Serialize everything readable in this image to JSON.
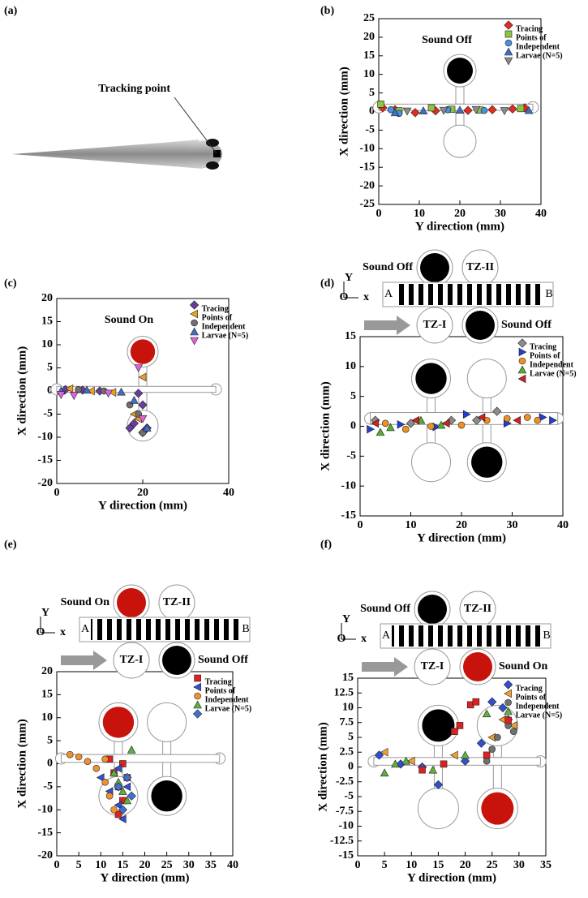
{
  "chart_data": [
    {
      "type": "image",
      "panel_label": "(a)",
      "annotation": "Tracking point"
    },
    {
      "type": "scatter",
      "panel_label": "(b)",
      "annotation": "Sound Off",
      "xlabel": "Y direction  (mm)",
      "ylabel": "X direction (mm)",
      "xlim": [
        0,
        40
      ],
      "xticks": [
        0,
        10,
        20,
        30,
        40
      ],
      "ylim": [
        -25,
        25
      ],
      "yticks": [
        -25,
        -20,
        -15,
        -10,
        -5,
        0,
        5,
        10,
        15,
        20,
        25
      ],
      "chamber_colors": [
        "#000000",
        "#ffffff"
      ],
      "series": [
        {
          "name": "Tracing",
          "color": "#e32b1e",
          "marker": "diamond",
          "x": [
            1,
            4,
            9,
            14,
            22,
            28,
            33,
            36
          ],
          "values": [
            1,
            0.5,
            -0.3,
            0.2,
            0.3,
            0.5,
            0.7,
            1
          ]
        },
        {
          "name": "Points of",
          "color": "#8cc63f",
          "marker": "square",
          "x": [
            0.5,
            5,
            13,
            18,
            25,
            35
          ],
          "values": [
            2,
            0.2,
            1,
            0.6,
            0.4,
            0.8
          ]
        },
        {
          "name": "Independent",
          "color": "#4a90d9",
          "marker": "circle",
          "x": [
            3,
            5,
            17,
            26
          ],
          "values": [
            0.5,
            -0.5,
            0.5,
            0.3
          ]
        },
        {
          "name": "Larvae (N=5)",
          "color": "#3d6fc9",
          "marker": "triangle-up",
          "x": [
            4,
            11,
            20,
            37
          ],
          "values": [
            -0.3,
            0.2,
            0.4,
            0.3
          ]
        },
        {
          "name": null,
          "color": "#8c8c8c",
          "marker": "triangle-down",
          "x": [
            7,
            16,
            24,
            31
          ],
          "values": [
            0.1,
            0.3,
            0.5,
            0.2
          ]
        }
      ]
    },
    {
      "type": "scatter",
      "panel_label": "(c)",
      "annotation": "Sound On",
      "xlabel": "Y direction  (mm)",
      "ylabel": "X direction (mm)",
      "xlim": [
        0,
        40
      ],
      "xticks": [
        0,
        20,
        40
      ],
      "ylim": [
        -20,
        20
      ],
      "yticks": [
        -20,
        -15,
        -10,
        -5,
        0,
        5,
        10,
        15,
        20
      ],
      "chamber_colors": [
        "#c8120c",
        "#ffffff"
      ],
      "series": [
        {
          "name": "Tracing",
          "color": "#6a3d9a",
          "marker": "diamond",
          "x": [
            2,
            6,
            10,
            19,
            20,
            18,
            21,
            20,
            17
          ],
          "values": [
            0.3,
            0.2,
            0,
            -0.5,
            -3,
            -7,
            -8,
            -9,
            -8
          ]
        },
        {
          "name": "Points of",
          "color": "#f0a020",
          "marker": "triangle-left",
          "x": [
            3,
            8,
            13,
            18,
            20,
            19
          ],
          "values": [
            0.5,
            0,
            -0.3,
            -5,
            3,
            -6
          ]
        },
        {
          "name": "Independent",
          "color": "#707070",
          "marker": "circle",
          "x": [
            5,
            11,
            17,
            19,
            20
          ],
          "values": [
            0.3,
            0,
            -3,
            -5,
            -9
          ]
        },
        {
          "name": "Larvae (N=5)",
          "color": "#3d6fc9",
          "marker": "triangle-up",
          "x": [
            1,
            7,
            15,
            18,
            21
          ],
          "values": [
            0,
            0.2,
            -0.2,
            -2,
            -8
          ]
        },
        {
          "name": null,
          "color": "#e060e0",
          "marker": "triangle-down",
          "x": [
            1,
            4,
            12,
            19,
            20
          ],
          "values": [
            -0.8,
            -1,
            -0.5,
            5,
            -6
          ]
        }
      ]
    },
    {
      "type": "scatter",
      "panel_label": "(d)",
      "xlabel": "Y direction  (mm)",
      "ylabel": "X direction (mm)",
      "xlim": [
        0,
        40
      ],
      "xticks": [
        0,
        10,
        20,
        30,
        40
      ],
      "ylim": [
        -15,
        15
      ],
      "yticks": [
        -15,
        -10,
        -5,
        0,
        5,
        10,
        15
      ],
      "chamber_colors": [
        "#000000",
        "#ffffff",
        "#ffffff",
        "#000000"
      ],
      "schematic": {
        "labels": [
          "Sound Off",
          "TZ-II",
          "A",
          "B",
          "TZ-I",
          "Sound Off",
          "Y",
          "O",
          "x"
        ],
        "top_color": "#000000",
        "bottom_color": "#000000"
      },
      "series": [
        {
          "name": "Tracing",
          "color": "#8c8c8c",
          "marker": "diamond",
          "x": [
            3,
            10,
            18,
            23,
            27
          ],
          "values": [
            1,
            0.5,
            1,
            1,
            2.5
          ]
        },
        {
          "name": "Points of",
          "color": "#2040d0",
          "marker": "triangle-right",
          "x": [
            2,
            8,
            15,
            21,
            29,
            36,
            38
          ],
          "values": [
            -0.5,
            0.3,
            -0.1,
            2,
            0.5,
            1.5,
            1
          ]
        },
        {
          "name": "Independent",
          "color": "#f09020",
          "marker": "circle",
          "x": [
            5,
            9,
            14,
            20,
            25,
            29,
            33,
            35
          ],
          "values": [
            0.5,
            -0.5,
            0,
            0.2,
            1,
            1.3,
            1.5,
            1
          ]
        },
        {
          "name": "Larvae (N=5)",
          "color": "#50b030",
          "marker": "triangle-up",
          "x": [
            4,
            6,
            12,
            16
          ],
          "values": [
            -1,
            -0.2,
            1,
            0.2
          ]
        },
        {
          "name": null,
          "color": "#d02020",
          "marker": "triangle-left",
          "x": [
            3,
            11,
            17,
            24,
            31
          ],
          "values": [
            0.5,
            1,
            0.5,
            1.5,
            1
          ]
        }
      ]
    },
    {
      "type": "scatter",
      "panel_label": "(e)",
      "xlabel": "Y direction  (mm)",
      "ylabel": "X direction (mm)",
      "xlim": [
        0,
        40
      ],
      "xticks": [
        0,
        5,
        10,
        15,
        20,
        25,
        30,
        35,
        40
      ],
      "ylim": [
        -20,
        20
      ],
      "yticks": [
        -20,
        -15,
        -10,
        -5,
        0,
        5,
        10,
        15,
        20
      ],
      "chamber_colors": [
        "#c8120c",
        "#ffffff",
        "#ffffff",
        "#000000"
      ],
      "schematic": {
        "labels": [
          "Sound On",
          "TZ-II",
          "A",
          "B",
          "TZ-I",
          "Sound Off",
          "Y",
          "O",
          "x"
        ],
        "top_color": "#c8120c",
        "bottom_color": "#000000"
      },
      "series": [
        {
          "name": "Tracing",
          "color": "#e02020",
          "marker": "square",
          "x": [
            12,
            13,
            14,
            15,
            16,
            15,
            14
          ],
          "values": [
            1,
            -2,
            -5,
            -8,
            -3,
            0,
            -11
          ]
        },
        {
          "name": "Points of",
          "color": "#3050d0",
          "marker": "triangle-left",
          "x": [
            10,
            12,
            14,
            15,
            16,
            14
          ],
          "values": [
            -3,
            -6,
            -9,
            -12,
            -5,
            -1
          ]
        },
        {
          "name": "Independent",
          "color": "#f09030",
          "marker": "circle",
          "x": [
            3,
            5,
            7,
            9,
            11,
            12,
            13,
            11
          ],
          "values": [
            2,
            1.5,
            0.5,
            -1,
            -4,
            -7,
            -10,
            1
          ]
        },
        {
          "name": "Larvae (N=5)",
          "color": "#60b040",
          "marker": "triangle-up",
          "x": [
            13,
            15,
            16,
            17,
            14
          ],
          "values": [
            -2,
            -6,
            -8,
            3,
            -4
          ]
        },
        {
          "name": null,
          "color": "#4070d0",
          "marker": "diamond",
          "x": [
            14,
            15,
            17,
            16
          ],
          "values": [
            -5,
            -10,
            -7,
            -3
          ]
        }
      ]
    },
    {
      "type": "scatter",
      "panel_label": "(f)",
      "xlabel": "Y direction  (mm)",
      "ylabel": "X direction (mm)",
      "xlim": [
        0,
        35
      ],
      "xticks": [
        0,
        5,
        10,
        15,
        20,
        25,
        30,
        35
      ],
      "ylim": [
        -15,
        15
      ],
      "yticks": [
        -15,
        -12.5,
        -10,
        -7.5,
        -5,
        -2.5,
        0,
        2.5,
        5,
        7.5,
        10,
        12.5,
        15
      ],
      "chamber_colors": [
        "#000000",
        "#ffffff",
        "#ffffff",
        "#c8120c"
      ],
      "schematic": {
        "labels": [
          "Sound Off",
          "TZ-II",
          "A",
          "B",
          "TZ-I",
          "Sound On",
          "Y",
          "O",
          "x"
        ],
        "top_color": "#000000",
        "bottom_color": "#c8120c"
      },
      "series": [
        {
          "name": "Tracing",
          "color": "#3050d0",
          "marker": "diamond",
          "x": [
            4,
            8,
            12,
            15,
            20,
            23,
            25,
            27,
            28
          ],
          "values": [
            2,
            0.5,
            0,
            -3,
            1,
            4,
            11,
            10,
            8
          ]
        },
        {
          "name": "Points of",
          "color": "#f0a030",
          "marker": "triangle-left",
          "x": [
            5,
            10,
            18,
            25,
            27,
            29
          ],
          "values": [
            2.5,
            1,
            2,
            5,
            8,
            7
          ]
        },
        {
          "name": "Independent",
          "color": "#707070",
          "marker": "circle",
          "x": [
            24,
            25,
            26,
            28,
            29
          ],
          "values": [
            1,
            3,
            5,
            7,
            6
          ]
        },
        {
          "name": "Larvae (N=5)",
          "color": "#60b040",
          "marker": "triangle-up",
          "x": [
            5,
            7,
            9,
            14,
            20,
            24
          ],
          "values": [
            -1,
            0.5,
            1,
            -0.5,
            2,
            9
          ]
        },
        {
          "name": null,
          "color": "#e02020",
          "marker": "square",
          "x": [
            12,
            16,
            19,
            21,
            22,
            24,
            18
          ],
          "values": [
            -0.5,
            0.5,
            7,
            10.5,
            11,
            2,
            6
          ]
        }
      ]
    }
  ]
}
